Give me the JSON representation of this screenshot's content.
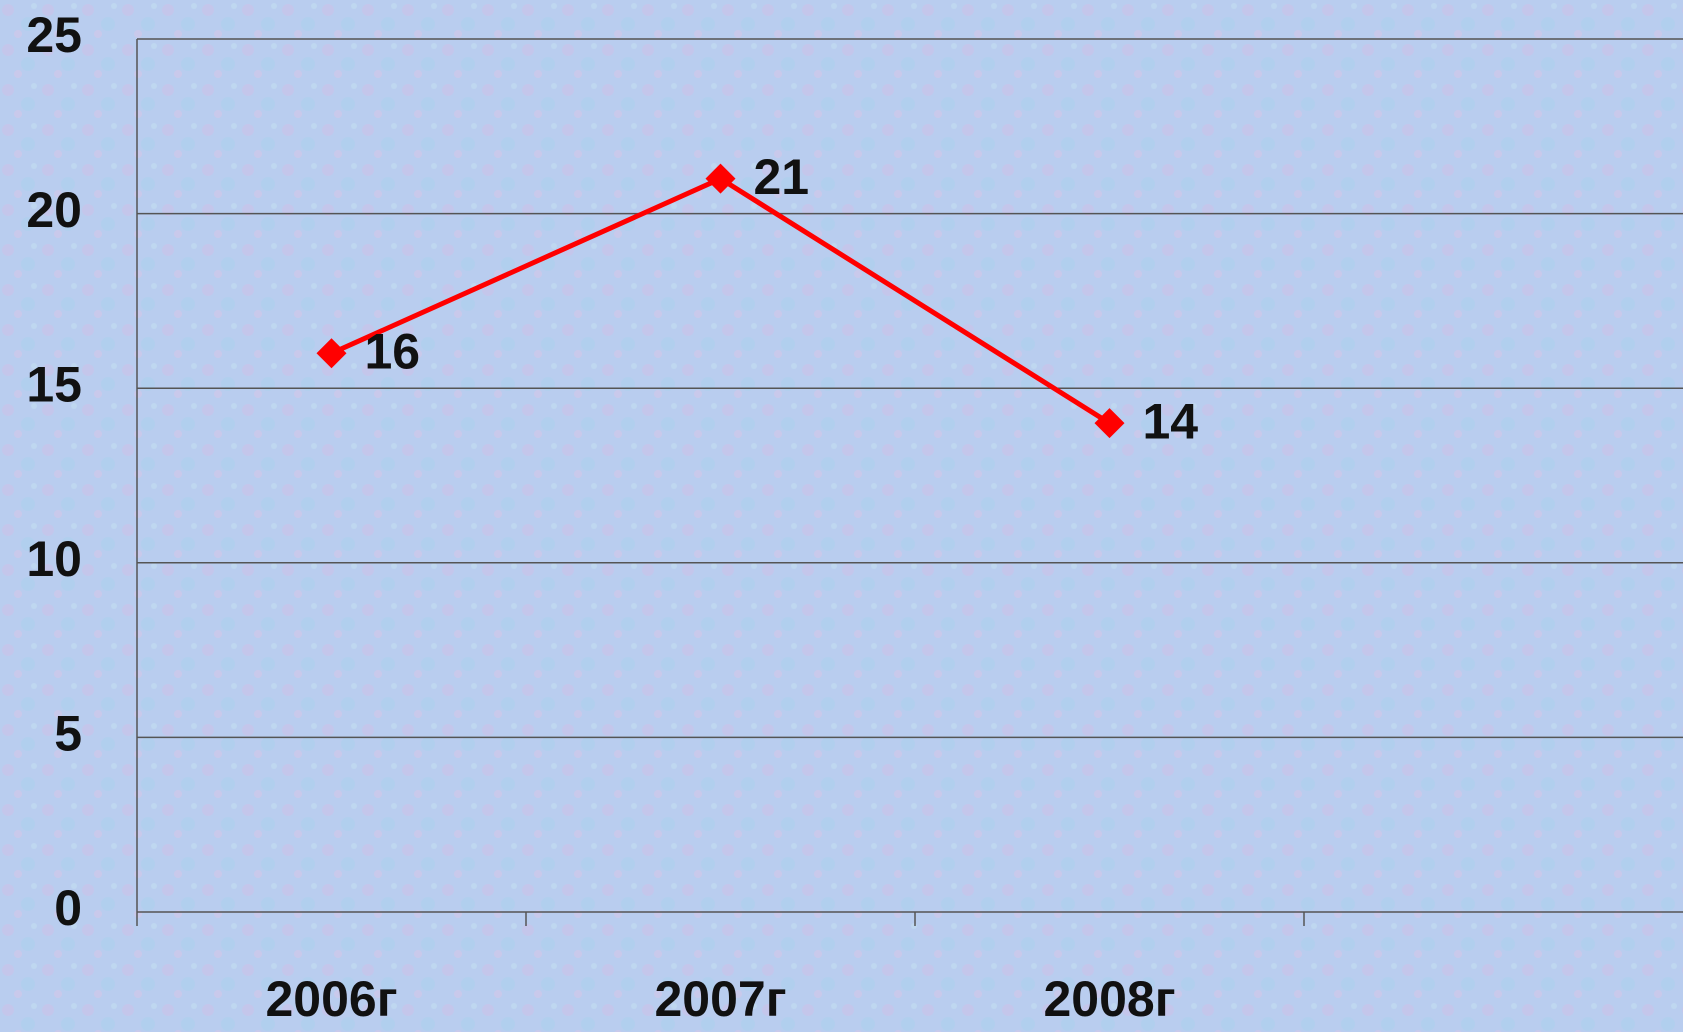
{
  "chart_data": {
    "type": "line",
    "categories": [
      "2006г",
      "2007г",
      "2008г",
      null
    ],
    "series": [
      {
        "color": "#ff0000",
        "values": [
          16,
          21,
          14,
          null
        ]
      }
    ],
    "ylim": [
      0,
      25
    ],
    "yticks": [
      0,
      5,
      10,
      15,
      20,
      25
    ],
    "grid": true
  }
}
